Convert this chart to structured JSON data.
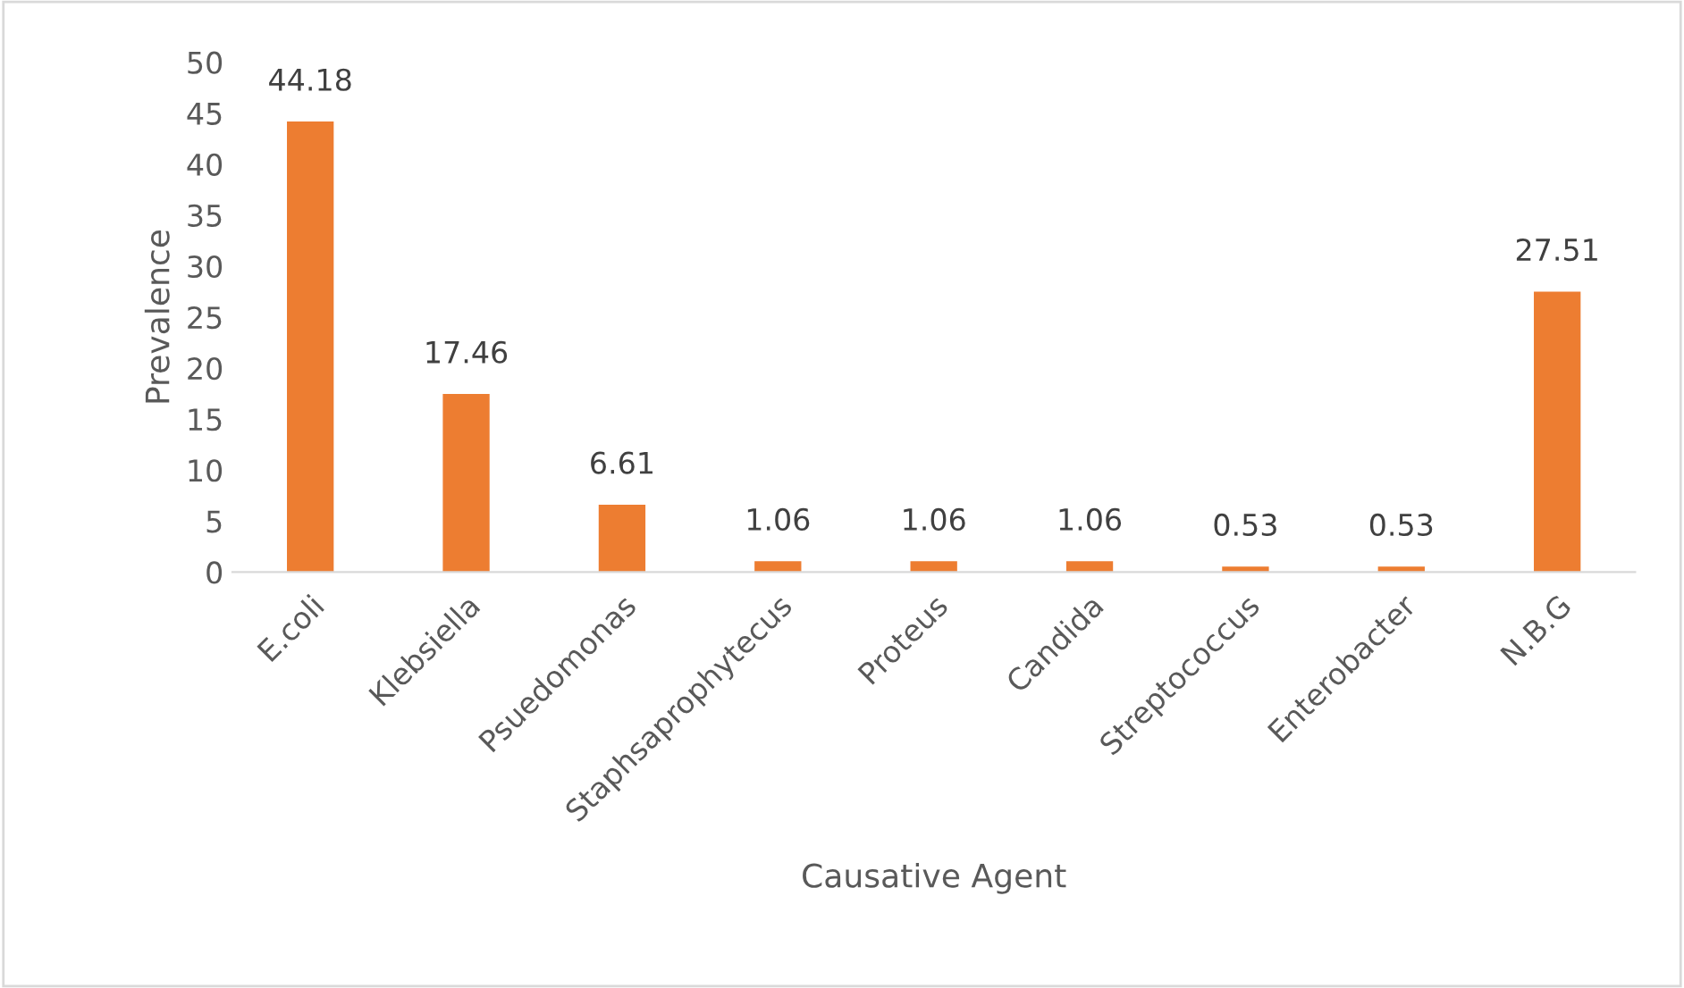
{
  "chart_data": {
    "type": "bar",
    "xlabel": "Causative Agent",
    "ylabel": "Prevalence",
    "categories": [
      "E.coli",
      "Klebsiella",
      "Psuedomonas",
      "Staphsaprophytecus",
      "Proteus",
      "Candida",
      "Streptococcus",
      "Enterobacter",
      "N.B.G"
    ],
    "values": [
      44.18,
      17.46,
      6.61,
      1.06,
      1.06,
      1.06,
      0.53,
      0.53,
      27.51
    ],
    "color": "#ed7d31",
    "ylim": [
      0,
      50
    ],
    "yticks": [
      0,
      5,
      10,
      15,
      20,
      25,
      30,
      35,
      40,
      45,
      50
    ],
    "grid": false,
    "data_labels": true
  }
}
